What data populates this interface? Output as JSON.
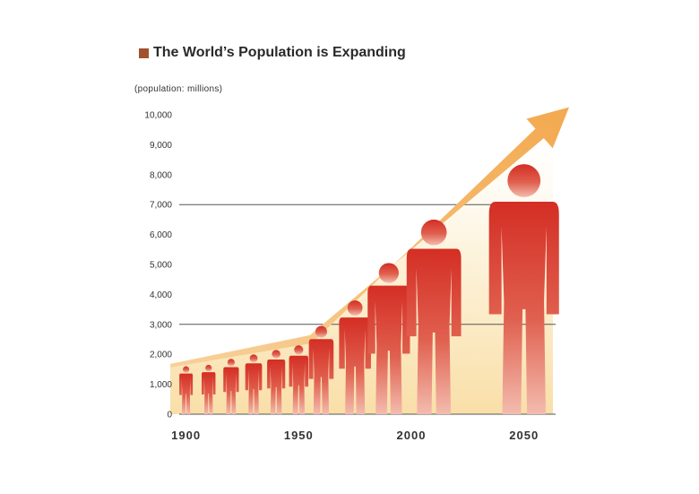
{
  "chart_data": {
    "type": "bar",
    "title": "The World’s Population is Expanding",
    "ylabel": "(population: millions)",
    "y_ticks": [
      "10,000",
      "9,000",
      "8,000",
      "7,000",
      "6,000",
      "5,000",
      "4,000",
      "3,000",
      "2,000",
      "1,000",
      "0"
    ],
    "x_tick_labels": [
      {
        "label": "1900",
        "year": 1900
      },
      {
        "label": "1950",
        "year": 1950
      },
      {
        "label": "2000",
        "year": 2000
      },
      {
        "label": "2050",
        "year": 2050
      }
    ],
    "ylim": [
      0,
      10000
    ],
    "gridlines": [
      3000,
      7000
    ],
    "series": [
      {
        "values": [
          {
            "year": 1900,
            "value": 1600
          },
          {
            "year": 1910,
            "value": 1650
          },
          {
            "year": 1920,
            "value": 1850
          },
          {
            "year": 1930,
            "value": 2000
          },
          {
            "year": 1940,
            "value": 2150
          },
          {
            "year": 1950,
            "value": 2300
          },
          {
            "year": 1960,
            "value": 2950
          },
          {
            "year": 1975,
            "value": 3800
          },
          {
            "year": 1990,
            "value": 5050
          },
          {
            "year": 2010,
            "value": 6500
          },
          {
            "year": 2050,
            "value": 8350
          }
        ]
      }
    ],
    "trend_arrow": [
      {
        "year": 1893,
        "value": 1650
      },
      {
        "year": 1955,
        "value": 2550
      },
      {
        "year": 2070,
        "value": 10250
      }
    ],
    "colors": {
      "figure_top": "#d42e24",
      "figure_bottom": "#f2b5a8",
      "arrow": "#f4b35f",
      "fill_top": "#fbe7c1",
      "grid": "#555555",
      "title_square": "#a0522d"
    }
  }
}
